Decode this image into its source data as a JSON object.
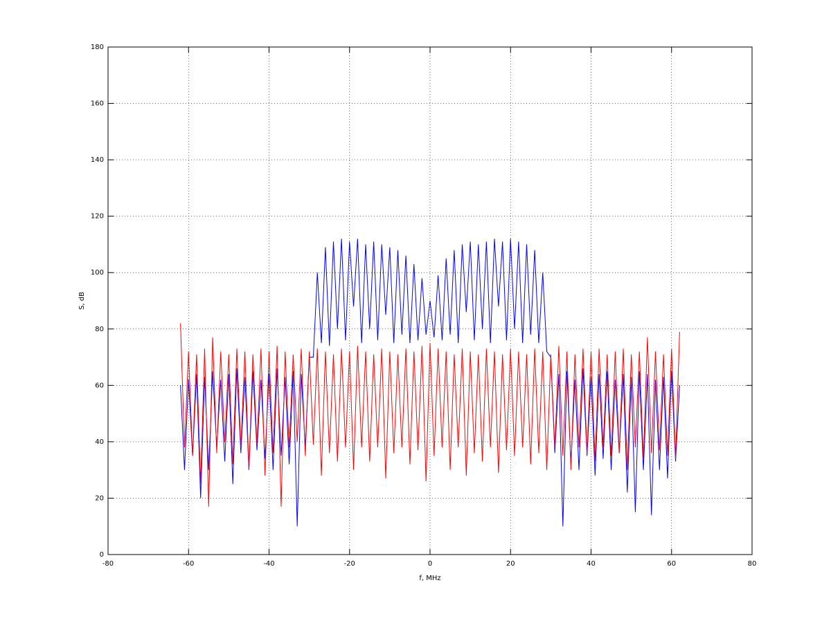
{
  "chart_data": {
    "type": "line",
    "xlabel": "f, MHz",
    "ylabel": "S, dB",
    "xlim": [
      -80,
      80
    ],
    "xticks": [
      -80,
      -60,
      -40,
      -20,
      0,
      20,
      40,
      60,
      80
    ],
    "ylim": [
      0,
      180
    ],
    "yticks": [
      0,
      20,
      40,
      60,
      80,
      100,
      120,
      140,
      160,
      180
    ],
    "grid": true,
    "x": [
      -62,
      -61,
      -60,
      -59,
      -58,
      -57,
      -56,
      -55,
      -54,
      -53,
      -52,
      -51,
      -50,
      -49,
      -48,
      -47,
      -46,
      -45,
      -44,
      -43,
      -42,
      -41,
      -40,
      -39,
      -38,
      -37,
      -36,
      -35,
      -34,
      -33,
      -32,
      -31,
      -30,
      -29,
      -28,
      -27,
      -26,
      -25,
      -24,
      -23,
      -22,
      -21,
      -20,
      -19,
      -18,
      -17,
      -16,
      -15,
      -14,
      -13,
      -12,
      -11,
      -10,
      -9,
      -8,
      -7,
      -6,
      -5,
      -4,
      -3,
      -2,
      -1,
      0,
      1,
      2,
      3,
      4,
      5,
      6,
      7,
      8,
      9,
      10,
      11,
      12,
      13,
      14,
      15,
      16,
      17,
      18,
      19,
      20,
      21,
      22,
      23,
      24,
      25,
      26,
      27,
      28,
      29,
      30,
      31,
      32,
      33,
      34,
      35,
      36,
      37,
      38,
      39,
      40,
      41,
      42,
      43,
      44,
      45,
      46,
      47,
      48,
      49,
      50,
      51,
      52,
      53,
      54,
      55,
      56,
      57,
      58,
      59,
      60,
      61,
      62
    ],
    "series": [
      {
        "color": "#0000ff",
        "values": [
          60,
          30,
          62,
          35,
          64,
          20,
          63,
          30,
          65,
          38,
          62,
          33,
          64,
          25,
          66,
          36,
          63,
          30,
          65,
          37,
          62,
          34,
          64,
          30,
          66,
          35,
          63,
          32,
          65,
          10,
          64,
          38,
          70,
          70,
          100,
          75,
          109,
          74,
          111,
          80,
          112,
          76,
          111,
          88,
          112,
          75,
          110,
          80,
          111,
          76,
          110,
          85,
          109,
          75,
          108,
          78,
          106,
          75,
          103,
          76,
          98,
          78,
          90,
          77,
          99,
          76,
          105,
          78,
          108,
          75,
          110,
          86,
          111,
          76,
          110,
          80,
          111,
          75,
          112,
          88,
          111,
          76,
          112,
          80,
          111,
          75,
          110,
          78,
          108,
          75,
          100,
          72,
          70,
          36,
          64,
          10,
          65,
          32,
          62,
          30,
          66,
          35,
          63,
          28,
          64,
          34,
          65,
          30,
          62,
          36,
          64,
          22,
          63,
          15,
          65,
          30,
          64,
          14,
          62,
          30,
          63,
          27,
          65,
          33,
          60
        ]
      },
      {
        "color": "#ff0000",
        "values": [
          82,
          38,
          72,
          35,
          71,
          25,
          73,
          17,
          77,
          36,
          72,
          40,
          71,
          32,
          73,
          38,
          72,
          30,
          71,
          39,
          73,
          28,
          72,
          36,
          74,
          17,
          72,
          38,
          71,
          40,
          73,
          35,
          72,
          39,
          73,
          28,
          72,
          36,
          71,
          33,
          73,
          38,
          72,
          30,
          74,
          38,
          72,
          33,
          71,
          38,
          73,
          27,
          72,
          36,
          71,
          38,
          73,
          32,
          72,
          37,
          74,
          26,
          75,
          35,
          73,
          38,
          72,
          30,
          71,
          38,
          73,
          28,
          72,
          36,
          71,
          33,
          73,
          38,
          72,
          29,
          71,
          37,
          73,
          35,
          72,
          38,
          71,
          32,
          73,
          36,
          72,
          30,
          71,
          38,
          74,
          35,
          72,
          30,
          71,
          38,
          73,
          36,
          72,
          33,
          73,
          38,
          71,
          35,
          72,
          36,
          73,
          30,
          71,
          38,
          72,
          34,
          77,
          36,
          72,
          37,
          71,
          35,
          73,
          34,
          79
        ]
      }
    ]
  }
}
